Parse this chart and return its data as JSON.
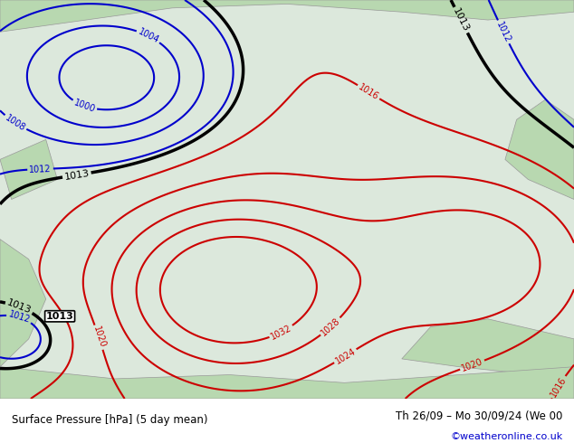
{
  "title_left": "Surface Pressure [hPa] (5 day mean)",
  "title_right": "Th 26/09 – Mo 30/09/24 (We 00",
  "credit": "©weatheronline.co.uk",
  "bg_color": "#e8f4e8",
  "land_color": "#d8ecd8",
  "sea_color": "#c8d8e8",
  "blue_contour_color": "#0000cc",
  "red_contour_color": "#cc0000",
  "black_contour_color": "#000000",
  "border_color": "#808080",
  "text_color_bottom_left": "#000000",
  "text_color_bottom_right": "#000000",
  "credit_color": "#0000cc",
  "figsize": [
    6.34,
    4.9
  ],
  "dpi": 100
}
